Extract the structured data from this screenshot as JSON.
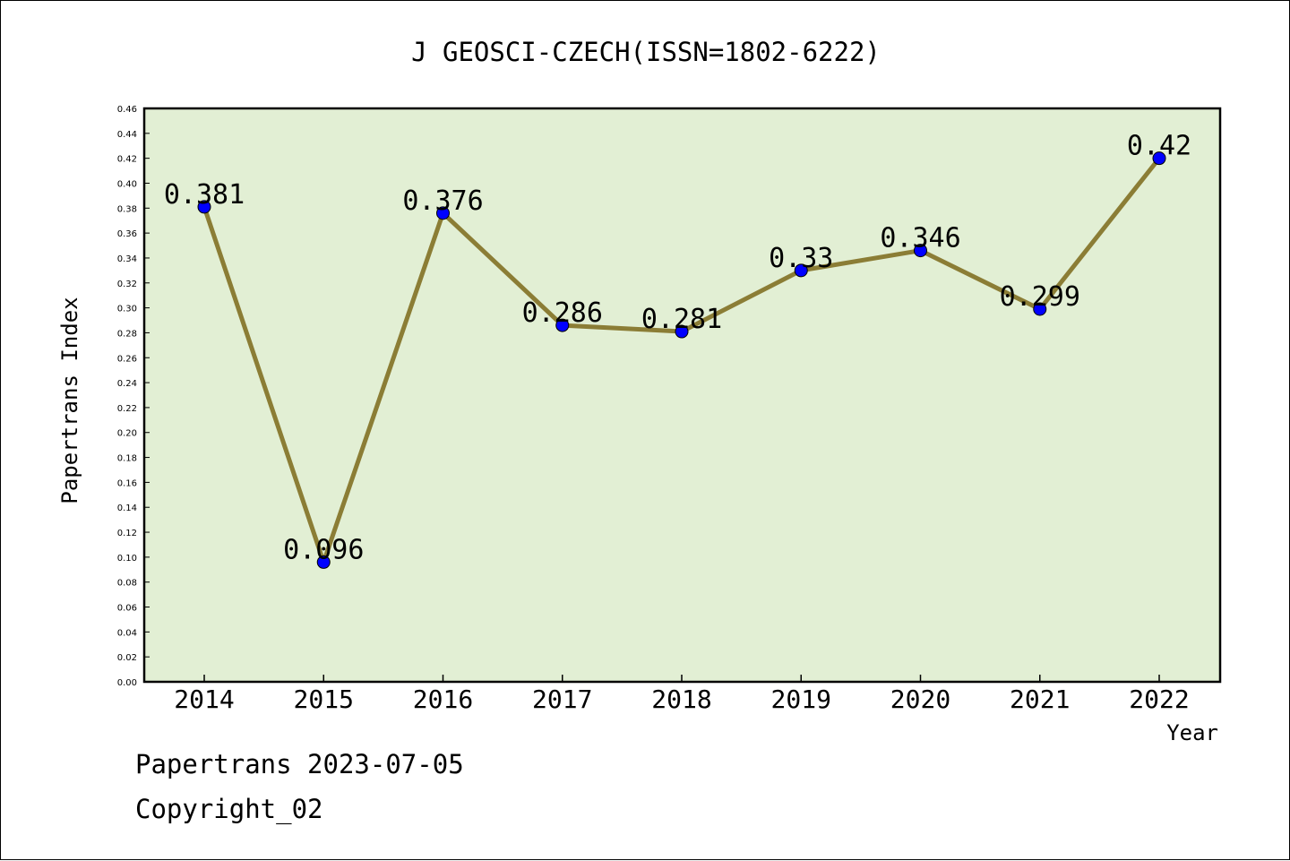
{
  "chart_data": {
    "type": "line",
    "title": "J GEOSCI-CZECH(ISSN=1802-6222)",
    "xlabel": "Year",
    "ylabel": "Papertrans Index",
    "categories": [
      "2014",
      "2015",
      "2016",
      "2017",
      "2018",
      "2019",
      "2020",
      "2021",
      "2022"
    ],
    "values": [
      0.381,
      0.096,
      0.376,
      0.286,
      0.281,
      0.33,
      0.346,
      0.299,
      0.42
    ],
    "data_labels": [
      "0.381",
      "0.096",
      "0.376",
      "0.286",
      "0.281",
      "0.33",
      "0.346",
      "0.299",
      "0.42"
    ],
    "ylim": [
      0,
      0.46
    ],
    "ytick_step": 0.02,
    "grid": false,
    "colors": {
      "plot_background": "#e2efd4",
      "line": "#8b7d35",
      "marker": "#0000ff"
    }
  },
  "footer": {
    "line1": "Papertrans 2023-07-05",
    "line2": "Copyright_02"
  }
}
